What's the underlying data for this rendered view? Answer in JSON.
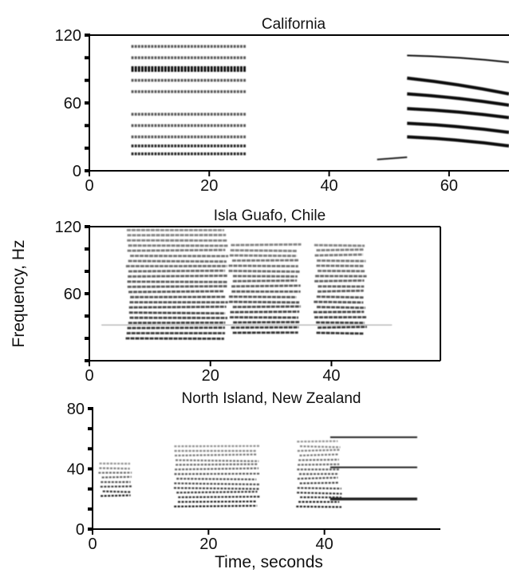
{
  "figure": {
    "y_label": "Frequency, Hz",
    "x_label": "Time, seconds"
  },
  "chart_data": [
    {
      "type": "spectrogram",
      "title": "California",
      "xlim": [
        0,
        70
      ],
      "ylim": [
        0,
        120
      ],
      "x_ticks": [
        0,
        20,
        40,
        60
      ],
      "y_ticks": [
        0,
        60,
        120
      ],
      "frame": "left-bottom-top",
      "grid": false,
      "segments": [
        {
          "t": [
            7,
            26
          ],
          "f": [
            15,
            118
          ],
          "kind": "pulsed-harmonic-stack",
          "bands": [
            15,
            22,
            30,
            40,
            50,
            70,
            80,
            90,
            100,
            110
          ]
        },
        {
          "t": [
            48,
            53
          ],
          "f": [
            10,
            12
          ],
          "kind": "tone"
        },
        {
          "t": [
            53,
            70
          ],
          "f": [
            20,
            105
          ],
          "kind": "downsweep-harmonics",
          "bands": [
            [
              30,
              22
            ],
            [
              42,
              34
            ],
            [
              55,
              47
            ],
            [
              68,
              58
            ],
            [
              82,
              68
            ],
            [
              102,
              96
            ]
          ]
        }
      ]
    },
    {
      "type": "spectrogram",
      "title": "Isla Guafo, Chile",
      "xlim": [
        0,
        58
      ],
      "ylim": [
        0,
        120
      ],
      "x_ticks": [
        0,
        20,
        40
      ],
      "y_ticks": [
        60,
        120
      ],
      "frame": "box",
      "grid": false,
      "segments": [
        {
          "t": [
            2,
            50
          ],
          "f": [
            32,
            32
          ],
          "kind": "background-tone"
        },
        {
          "t": [
            6,
            23
          ],
          "f": [
            20,
            118
          ],
          "kind": "harmonic-stack"
        },
        {
          "t": [
            23,
            35
          ],
          "f": [
            25,
            108
          ],
          "kind": "harmonic-stack"
        },
        {
          "t": [
            37,
            46
          ],
          "f": [
            25,
            108
          ],
          "kind": "harmonic-stack"
        }
      ]
    },
    {
      "type": "spectrogram",
      "title": "North Island, New Zealand",
      "xlim": [
        0,
        60
      ],
      "ylim": [
        0,
        80
      ],
      "x_ticks": [
        0,
        20,
        40
      ],
      "y_ticks": [
        0,
        40,
        80
      ],
      "frame": "left-bottom",
      "grid": false,
      "segments": [
        {
          "t": [
            1,
            7
          ],
          "f": [
            22,
            45
          ],
          "kind": "harmonic-stack"
        },
        {
          "t": [
            14,
            29
          ],
          "f": [
            15,
            58
          ],
          "kind": "harmonic-stack"
        },
        {
          "t": [
            35,
            43
          ],
          "f": [
            15,
            60
          ],
          "kind": "harmonic-stack"
        },
        {
          "t": [
            41,
            56
          ],
          "f": [
            20,
            61
          ],
          "kind": "harmonics",
          "bands": [
            20,
            41,
            61
          ]
        }
      ]
    }
  ]
}
